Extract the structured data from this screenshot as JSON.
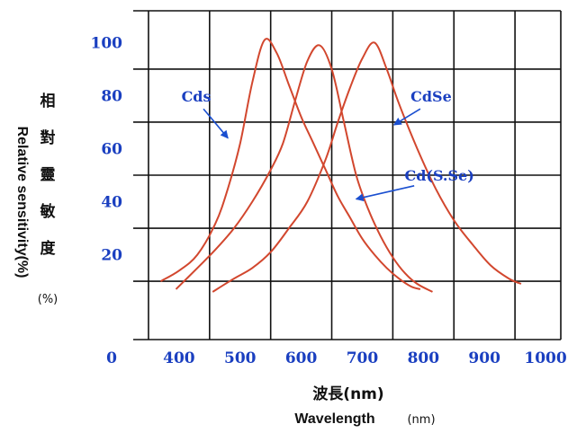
{
  "colors": {
    "curve": "#d2472e",
    "tick_text": "#1a3fc0",
    "annotation_arrow": "#1a4fd0",
    "grid": "#111111",
    "axis_text": "#111111"
  },
  "chart_data": {
    "type": "line",
    "xlabel_cn": "波長(nm)",
    "xlabel_en": "Wavelength",
    "xlabel_unit": "(nm)",
    "ylabel_cn": [
      "相",
      "對",
      "靈",
      "敏",
      "度"
    ],
    "ylabel_unit": "(%)",
    "ylabel_en": "Relative sensitivity(%)",
    "origin_label": "0",
    "xlim": [
      325,
      1025
    ],
    "ylim": [
      -12,
      112
    ],
    "grid": true,
    "x_gridlines": [
      350,
      450,
      550,
      650,
      750,
      850,
      950,
      1025
    ],
    "y_gridlines": [
      -12,
      10,
      30,
      50,
      70,
      90,
      112
    ],
    "x_ticks": [
      400,
      500,
      600,
      700,
      800,
      900,
      1000
    ],
    "x_tick_labels": [
      "400",
      "500",
      "600",
      "700",
      "800",
      "900",
      "1000"
    ],
    "y_ticks": [
      20,
      40,
      60,
      80,
      100
    ],
    "y_tick_labels": [
      "20",
      "40",
      "60",
      "80",
      "100"
    ],
    "series": [
      {
        "name": "Cds",
        "x": [
          370,
          400,
          430,
          460,
          480,
          500,
          520,
          540,
          560,
          580,
          600,
          620,
          640,
          660,
          680,
          700,
          720,
          740,
          760,
          780,
          795
        ],
        "y": [
          10,
          14,
          20,
          32,
          45,
          62,
          85,
          101,
          96,
          84,
          72,
          62,
          52,
          42,
          34,
          26,
          20,
          15,
          11,
          8,
          7
        ]
      },
      {
        "name": "Cd(S.Se)",
        "x": [
          395,
          430,
          460,
          490,
          520,
          550,
          570,
          590,
          610,
          630,
          650,
          670,
          690,
          710,
          730,
          750,
          770,
          790,
          815
        ],
        "y": [
          7,
          15,
          22,
          30,
          40,
          52,
          62,
          78,
          93,
          99,
          90,
          70,
          50,
          37,
          27,
          19,
          13,
          9,
          6
        ]
      },
      {
        "name": "CdSe",
        "x": [
          455,
          490,
          520,
          550,
          580,
          610,
          640,
          660,
          680,
          700,
          720,
          740,
          760,
          790,
          820,
          850,
          880,
          910,
          940,
          960
        ],
        "y": [
          6,
          11,
          15,
          21,
          30,
          40,
          56,
          70,
          83,
          94,
          100,
          90,
          77,
          60,
          45,
          33,
          24,
          16,
          11,
          9
        ]
      }
    ],
    "annotations": [
      {
        "text": "Cds",
        "arrow_from": [
          440,
          75
        ],
        "arrow_to": [
          480,
          64
        ]
      },
      {
        "text": "CdSe",
        "arrow_from": [
          795,
          75
        ],
        "arrow_to": [
          752,
          69
        ]
      },
      {
        "text": "Cd(S.Se)",
        "arrow_from": [
          785,
          46
        ],
        "arrow_to": [
          690,
          41
        ]
      }
    ]
  }
}
